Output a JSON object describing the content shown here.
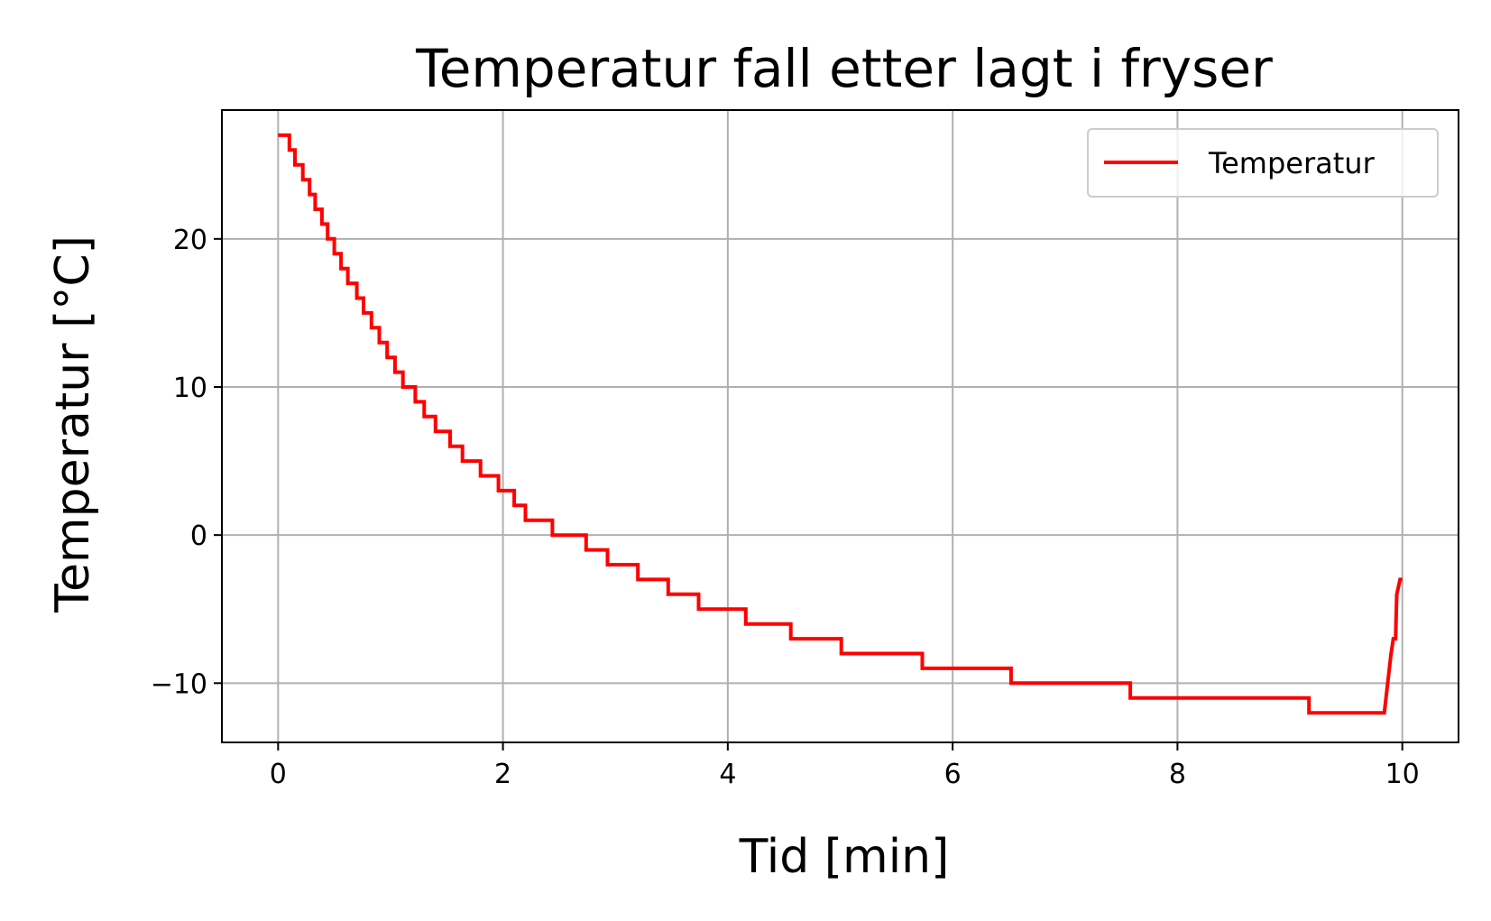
{
  "chart_data": {
    "type": "line",
    "title": "Temperatur fall etter lagt i fryser",
    "xlabel": "Tid [min]",
    "ylabel": "Temperatur [°C]",
    "xlim": [
      -0.5,
      10.5
    ],
    "ylim": [
      -14,
      28.7
    ],
    "xticks": [
      0,
      2,
      4,
      6,
      8,
      10
    ],
    "xtick_labels": [
      "0",
      "2",
      "4",
      "6",
      "8",
      "10"
    ],
    "yticks": [
      -10,
      0,
      10,
      20
    ],
    "ytick_labels": [
      "−10",
      "0",
      "10",
      "20"
    ],
    "grid": true,
    "legend_position": "top-right",
    "series": [
      {
        "name": "Temperatur",
        "color": "#ff0000",
        "line_style": "steps",
        "points": [
          [
            0.0,
            27
          ],
          [
            0.1,
            27
          ],
          [
            0.1,
            26
          ],
          [
            0.15,
            26
          ],
          [
            0.15,
            25
          ],
          [
            0.22,
            25
          ],
          [
            0.22,
            24
          ],
          [
            0.28,
            24
          ],
          [
            0.28,
            23
          ],
          [
            0.33,
            23
          ],
          [
            0.33,
            22
          ],
          [
            0.39,
            22
          ],
          [
            0.39,
            21
          ],
          [
            0.44,
            21
          ],
          [
            0.44,
            20
          ],
          [
            0.5,
            20
          ],
          [
            0.5,
            19
          ],
          [
            0.56,
            19
          ],
          [
            0.56,
            18
          ],
          [
            0.62,
            18
          ],
          [
            0.62,
            17
          ],
          [
            0.7,
            17
          ],
          [
            0.7,
            16
          ],
          [
            0.76,
            16
          ],
          [
            0.76,
            15
          ],
          [
            0.83,
            15
          ],
          [
            0.83,
            14
          ],
          [
            0.9,
            14
          ],
          [
            0.9,
            13
          ],
          [
            0.97,
            13
          ],
          [
            0.97,
            12
          ],
          [
            1.04,
            12
          ],
          [
            1.04,
            11
          ],
          [
            1.11,
            11
          ],
          [
            1.11,
            10
          ],
          [
            1.22,
            10
          ],
          [
            1.22,
            9
          ],
          [
            1.3,
            9
          ],
          [
            1.3,
            8
          ],
          [
            1.4,
            8
          ],
          [
            1.4,
            7
          ],
          [
            1.53,
            7
          ],
          [
            1.53,
            6
          ],
          [
            1.64,
            6
          ],
          [
            1.64,
            5
          ],
          [
            1.8,
            5
          ],
          [
            1.8,
            4
          ],
          [
            1.96,
            4
          ],
          [
            1.96,
            3
          ],
          [
            2.1,
            3
          ],
          [
            2.1,
            2
          ],
          [
            2.2,
            2
          ],
          [
            2.2,
            1
          ],
          [
            2.44,
            1
          ],
          [
            2.44,
            0
          ],
          [
            2.74,
            0
          ],
          [
            2.74,
            -1
          ],
          [
            2.93,
            -1
          ],
          [
            2.93,
            -2
          ],
          [
            3.2,
            -2
          ],
          [
            3.2,
            -3
          ],
          [
            3.47,
            -3
          ],
          [
            3.47,
            -4
          ],
          [
            3.74,
            -4
          ],
          [
            3.74,
            -5
          ],
          [
            4.16,
            -5
          ],
          [
            4.16,
            -6
          ],
          [
            4.56,
            -6
          ],
          [
            4.56,
            -7
          ],
          [
            5.01,
            -7
          ],
          [
            5.01,
            -8
          ],
          [
            5.73,
            -8
          ],
          [
            5.73,
            -9
          ],
          [
            6.52,
            -9
          ],
          [
            6.52,
            -10
          ],
          [
            7.58,
            -10
          ],
          [
            7.58,
            -11
          ],
          [
            9.17,
            -11
          ],
          [
            9.17,
            -12
          ],
          [
            9.84,
            -12
          ],
          [
            9.9,
            -8
          ],
          [
            9.92,
            -7
          ],
          [
            9.94,
            -7
          ],
          [
            9.95,
            -4
          ],
          [
            9.98,
            -3
          ],
          [
            10.0,
            -3
          ]
        ]
      }
    ]
  }
}
